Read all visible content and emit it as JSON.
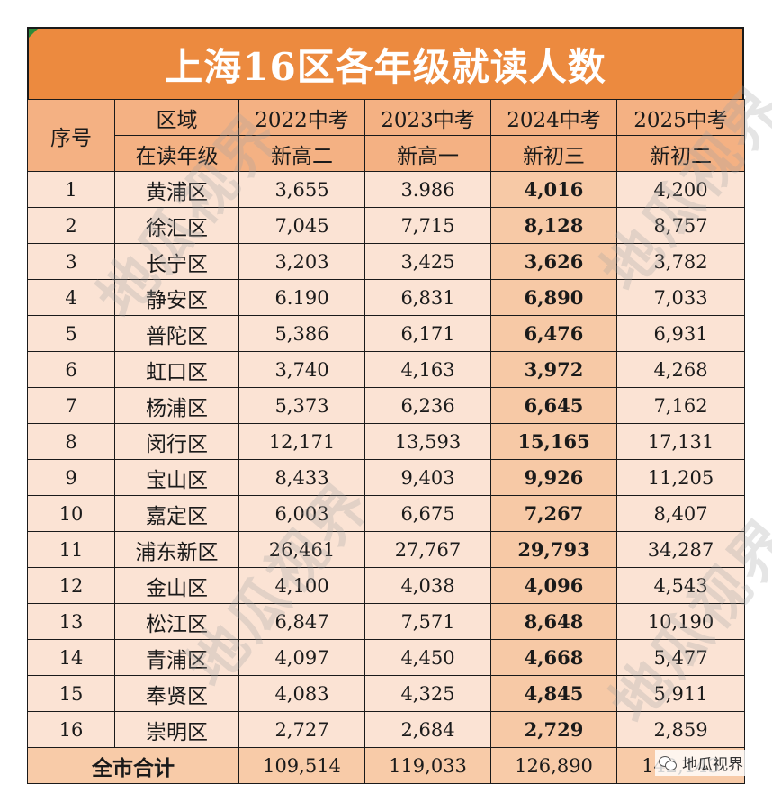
{
  "title": "上海16区各年级就读人数",
  "header": {
    "seq": "序号",
    "region": "区域",
    "grade": "在读年级",
    "years": [
      "2022中考",
      "2023中考",
      "2024中考",
      "2025中考"
    ],
    "grades": [
      "新高二",
      "新高一",
      "新初三",
      "新初二"
    ]
  },
  "rows": [
    {
      "no": "1",
      "name": "黄浦区",
      "v": [
        "3,655",
        "3.986",
        "4,016",
        "4,200"
      ]
    },
    {
      "no": "2",
      "name": "徐汇区",
      "v": [
        "7,045",
        "7,715",
        "8,128",
        "8,757"
      ]
    },
    {
      "no": "3",
      "name": "长宁区",
      "v": [
        "3,203",
        "3,425",
        "3,626",
        "3,782"
      ]
    },
    {
      "no": "4",
      "name": "静安区",
      "v": [
        "6.190",
        "6,831",
        "6,890",
        "7,033"
      ]
    },
    {
      "no": "5",
      "name": "普陀区",
      "v": [
        "5,386",
        "6,171",
        "6,476",
        "6,931"
      ]
    },
    {
      "no": "6",
      "name": "虹口区",
      "v": [
        "3,740",
        "4,163",
        "3,972",
        "4,268"
      ]
    },
    {
      "no": "7",
      "name": "杨浦区",
      "v": [
        "5,373",
        "6,236",
        "6,645",
        "7,162"
      ]
    },
    {
      "no": "8",
      "name": "闵行区",
      "v": [
        "12,171",
        "13,593",
        "15,165",
        "17,131"
      ]
    },
    {
      "no": "9",
      "name": "宝山区",
      "v": [
        "8,433",
        "9,403",
        "9,926",
        "11,205"
      ]
    },
    {
      "no": "10",
      "name": "嘉定区",
      "v": [
        "6,003",
        "6,675",
        "7,267",
        "8,407"
      ]
    },
    {
      "no": "11",
      "name": "浦东新区",
      "v": [
        "26,461",
        "27,767",
        "29,793",
        "34,287"
      ]
    },
    {
      "no": "12",
      "name": "金山区",
      "v": [
        "4,100",
        "4,038",
        "4,096",
        "4,543"
      ]
    },
    {
      "no": "13",
      "name": "松江区",
      "v": [
        "6,847",
        "7,571",
        "8,648",
        "10,190"
      ]
    },
    {
      "no": "14",
      "name": "青浦区",
      "v": [
        "4,097",
        "4,450",
        "4,668",
        "5,477"
      ]
    },
    {
      "no": "15",
      "name": "奉贤区",
      "v": [
        "4,083",
        "4,325",
        "4,845",
        "5,911"
      ]
    },
    {
      "no": "16",
      "name": "崇明区",
      "v": [
        "2,727",
        "2,684",
        "2,729",
        "2,859"
      ]
    }
  ],
  "total": {
    "label": "全市合计",
    "v": [
      "109,514",
      "119,033",
      "126,890",
      "142,143"
    ]
  },
  "watermark": "地瓜视界",
  "wechat_badge": "地瓜视界",
  "colors": {
    "title_bg": "#ec8a3f",
    "header_bg": "#f4b183",
    "body_bg": "#fbe3d4",
    "highlight_bg": "#f7c9a6"
  }
}
